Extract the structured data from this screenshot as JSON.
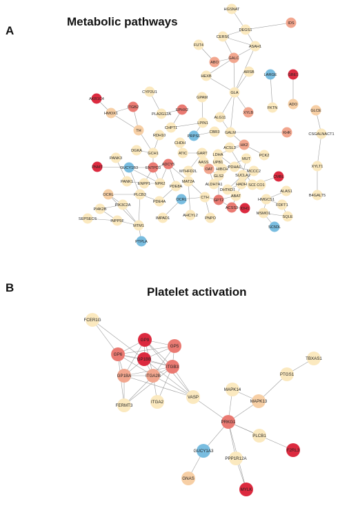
{
  "figure": {
    "panels": [
      {
        "label": "A",
        "title": "Metabolic pathways"
      },
      {
        "label": "B",
        "title": "Platelet activation"
      }
    ]
  },
  "colors": {
    "red": "#dc2a3f",
    "coral": "#ea7a72",
    "salmon": "#f2a68e",
    "peach": "#f7cfa5",
    "cream": "#fbe9bf",
    "blue": "#79bde0",
    "edge": "#9a9a9a",
    "text": "#222222"
  },
  "networks": {
    "metabolic": {
      "nodes": [
        {
          "id": "HGSNAT",
          "c": "cream"
        },
        {
          "id": "IDS",
          "c": "salmon"
        },
        {
          "id": "DEGS1",
          "c": "cream"
        },
        {
          "id": "CERS6",
          "c": "cream"
        },
        {
          "id": "ASAH1",
          "c": "cream"
        },
        {
          "id": "FUT4",
          "c": "cream"
        },
        {
          "id": "ABO",
          "c": "salmon"
        },
        {
          "id": "GALC",
          "c": "salmon"
        },
        {
          "id": "HEXB",
          "c": "cream"
        },
        {
          "id": "ARSB",
          "c": "cream"
        },
        {
          "id": "LARGE",
          "c": "blue"
        },
        {
          "id": "GBE1",
          "c": "red"
        },
        {
          "id": "ADO",
          "c": "peach"
        },
        {
          "id": "GLA",
          "c": "cream"
        },
        {
          "id": "FKTN",
          "c": "cream"
        },
        {
          "id": "AKR1C4",
          "c": "red"
        },
        {
          "id": "HMOX1",
          "c": "peach"
        },
        {
          "id": "ITGB2",
          "c": "coral"
        },
        {
          "id": "CYP2U1",
          "c": "cream"
        },
        {
          "id": "PLA2G12A",
          "c": "cream"
        },
        {
          "id": "EPHX2",
          "c": "coral"
        },
        {
          "id": "GPAM",
          "c": "cream"
        },
        {
          "id": "PRPS1",
          "c": "blue"
        },
        {
          "id": "LPIN1",
          "c": "cream"
        },
        {
          "id": "ALG11",
          "c": "cream"
        },
        {
          "id": "XYLB",
          "c": "salmon"
        },
        {
          "id": "GLCE",
          "c": "peach"
        },
        {
          "id": "CSGALNACT1",
          "c": "cream"
        },
        {
          "id": "XYLT1",
          "c": "cream"
        },
        {
          "id": "B4GALT5",
          "c": "cream"
        },
        {
          "id": "TH",
          "c": "peach"
        },
        {
          "id": "CHPT1",
          "c": "cream"
        },
        {
          "id": "RDH10",
          "c": "cream"
        },
        {
          "id": "CBR3",
          "c": "cream"
        },
        {
          "id": "GALM",
          "c": "cream"
        },
        {
          "id": "KHK",
          "c": "salmon"
        },
        {
          "id": "HK2",
          "c": "salmon"
        },
        {
          "id": "CHDH",
          "c": "cream"
        },
        {
          "id": "ATIC",
          "c": "cream"
        },
        {
          "id": "ACSL3",
          "c": "cream"
        },
        {
          "id": "DGKA",
          "c": "cream"
        },
        {
          "id": "GCH1",
          "c": "cream"
        },
        {
          "id": "GART",
          "c": "cream"
        },
        {
          "id": "LDHA",
          "c": "cream"
        },
        {
          "id": "PCK2",
          "c": "cream"
        },
        {
          "id": "PANK3",
          "c": "cream"
        },
        {
          "id": "AASS",
          "c": "cream"
        },
        {
          "id": "UPB1",
          "c": "cream"
        },
        {
          "id": "MUT",
          "c": "cream"
        },
        {
          "id": "PNMT",
          "c": "red"
        },
        {
          "id": "GUCY1B3",
          "c": "blue"
        },
        {
          "id": "ENTPD3",
          "c": "coral"
        },
        {
          "id": "ADCY5",
          "c": "coral"
        },
        {
          "id": "OAT",
          "c": "salmon"
        },
        {
          "id": "HIBCH",
          "c": "cream"
        },
        {
          "id": "PDHA1",
          "c": "cream"
        },
        {
          "id": "MCCC2",
          "c": "cream"
        },
        {
          "id": "PANK1",
          "c": "cream"
        },
        {
          "id": "ENPP1",
          "c": "cream"
        },
        {
          "id": "NPR2",
          "c": "cream"
        },
        {
          "id": "MTHFD2L",
          "c": "cream"
        },
        {
          "id": "GLS2",
          "c": "cream"
        },
        {
          "id": "SUCLA2",
          "c": "cream"
        },
        {
          "id": "CMBL",
          "c": "red"
        },
        {
          "id": "OCRL",
          "c": "peach"
        },
        {
          "id": "PLCB3",
          "c": "cream"
        },
        {
          "id": "PDE8A",
          "c": "cream"
        },
        {
          "id": "MAT2A",
          "c": "cream"
        },
        {
          "id": "ALDH7A1",
          "c": "cream"
        },
        {
          "id": "HADH",
          "c": "cream"
        },
        {
          "id": "SCD",
          "c": "cream"
        },
        {
          "id": "CO1",
          "c": "cream"
        },
        {
          "id": "ALAS1",
          "c": "cream"
        },
        {
          "id": "PDE4A",
          "c": "cream"
        },
        {
          "id": "PI4K2B",
          "c": "cream"
        },
        {
          "id": "PIK3C2A",
          "c": "cream"
        },
        {
          "id": "OCRL2",
          "c": "blue"
        },
        {
          "id": "CTH",
          "c": "cream"
        },
        {
          "id": "GPT2",
          "c": "coral"
        },
        {
          "id": "DHTKD1",
          "c": "cream"
        },
        {
          "id": "ABAT",
          "c": "cream"
        },
        {
          "id": "HMGCS1",
          "c": "cream"
        },
        {
          "id": "FDFT1",
          "c": "cream"
        },
        {
          "id": "SEPSECS",
          "c": "cream"
        },
        {
          "id": "INPP5F",
          "c": "cream"
        },
        {
          "id": "IMPAD1",
          "c": "cream"
        },
        {
          "id": "AHCYL2",
          "c": "cream"
        },
        {
          "id": "PNPO",
          "c": "cream"
        },
        {
          "id": "ACSS3",
          "c": "coral"
        },
        {
          "id": "IDH1",
          "c": "red"
        },
        {
          "id": "MSMO1",
          "c": "cream"
        },
        {
          "id": "SQLE",
          "c": "cream"
        },
        {
          "id": "MTM1",
          "c": "cream"
        },
        {
          "id": "SC5DL",
          "c": "blue"
        },
        {
          "id": "PTPLA",
          "c": "blue"
        }
      ],
      "edges": [
        [
          "HGSNAT",
          "DEGS1"
        ],
        [
          "DEGS1",
          "IDS"
        ],
        [
          "DEGS1",
          "CERS6"
        ],
        [
          "DEGS1",
          "ASAH1"
        ],
        [
          "CERS6",
          "ASAH1"
        ],
        [
          "CERS6",
          "GALC"
        ],
        [
          "ASAH1",
          "GALC"
        ],
        [
          "FUT4",
          "ABO"
        ],
        [
          "ABO",
          "GALC"
        ],
        [
          "GALC",
          "GLA"
        ],
        [
          "GALC",
          "HEXB"
        ],
        [
          "HEXB",
          "GLA"
        ],
        [
          "ARSB",
          "GLA"
        ],
        [
          "ASAH1",
          "GLA"
        ],
        [
          "LARGE",
          "FKTN"
        ],
        [
          "GBE1",
          "ADO"
        ],
        [
          "GLCE",
          "CSGALNACT1"
        ],
        [
          "CSGALNACT1",
          "XYLT1"
        ],
        [
          "XYLT1",
          "B4GALT5"
        ],
        [
          "GLA",
          "ALG11"
        ],
        [
          "GLA",
          "GALM"
        ],
        [
          "GLA",
          "XYLB"
        ],
        [
          "GPAM",
          "LPIN1"
        ],
        [
          "LPIN1",
          "CHPT1"
        ],
        [
          "LPIN1",
          "PRPS1"
        ],
        [
          "PRPS1",
          "CBR3"
        ],
        [
          "ALG11",
          "GALM"
        ],
        [
          "GALM",
          "HK2"
        ],
        [
          "GALM",
          "KHK"
        ],
        [
          "HK2",
          "LDHA"
        ],
        [
          "HK2",
          "PCK2"
        ],
        [
          "LDHA",
          "PDHA1"
        ],
        [
          "PDHA1",
          "MCCC2"
        ],
        [
          "ACSL3",
          "SCD"
        ],
        [
          "ACSL3",
          "HK2"
        ],
        [
          "ITGB2",
          "HMOX1"
        ],
        [
          "ITGB2",
          "TH"
        ],
        [
          "AKR1C4",
          "HMOX1"
        ],
        [
          "HMOX1",
          "TH"
        ],
        [
          "CYP2U1",
          "PLA2G12A"
        ],
        [
          "PLA2G12A",
          "EPHX2"
        ],
        [
          "EPHX2",
          "CHPT1"
        ],
        [
          "TH",
          "GCH1"
        ],
        [
          "RDH10",
          "GCH1"
        ],
        [
          "CHDH",
          "ATIC"
        ],
        [
          "ATIC",
          "GART"
        ],
        [
          "GART",
          "MTHFD2L"
        ],
        [
          "GART",
          "AASS"
        ],
        [
          "AASS",
          "OAT"
        ],
        [
          "OAT",
          "GLS2"
        ],
        [
          "OAT",
          "ALDH7A1"
        ],
        [
          "UPB1",
          "HIBCH"
        ],
        [
          "HIBCH",
          "MUT"
        ],
        [
          "MUT",
          "SUCLA2"
        ],
        [
          "SUCLA2",
          "DHTKD1"
        ],
        [
          "DGKA",
          "GCH1"
        ],
        [
          "GCH1",
          "ENTPD3"
        ],
        [
          "ENTPD3",
          "ADCY5"
        ],
        [
          "ENTPD3",
          "ENPP1"
        ],
        [
          "ENTPD3",
          "NPR2"
        ],
        [
          "ADCY5",
          "NPR2"
        ],
        [
          "ADCY5",
          "PDE8A"
        ],
        [
          "ADCY5",
          "MAT2A"
        ],
        [
          "PNMT",
          "GUCY1B3"
        ],
        [
          "GUCY1B3",
          "ENTPD3"
        ],
        [
          "GUCY1B3",
          "NPR2"
        ],
        [
          "PANK3",
          "PANK1"
        ],
        [
          "PANK1",
          "ENPP1"
        ],
        [
          "ENPP1",
          "NPR2"
        ],
        [
          "MAT2A",
          "CTH"
        ],
        [
          "MAT2A",
          "AHCYL2"
        ],
        [
          "CTH",
          "GPT2"
        ],
        [
          "GPT2",
          "ACSS3"
        ],
        [
          "ACSS3",
          "IDH1"
        ],
        [
          "GLS2",
          "GPT2"
        ],
        [
          "ABAT",
          "GPT2"
        ],
        [
          "HADH",
          "ACSS3"
        ],
        [
          "SCD",
          "CO1"
        ],
        [
          "CMBL",
          "SCD"
        ],
        [
          "ALAS1",
          "HMGCS1"
        ],
        [
          "HMGCS1",
          "FDFT1"
        ],
        [
          "FDFT1",
          "SQLE"
        ],
        [
          "HMGCS1",
          "MSMO1"
        ],
        [
          "MSMO1",
          "SC5DL"
        ],
        [
          "SQLE",
          "MSMO1"
        ],
        [
          "OCRL",
          "PLCB3"
        ],
        [
          "PLCB3",
          "PDE4A"
        ],
        [
          "OCRL",
          "PIK3C2A"
        ],
        [
          "PIK3C2A",
          "PI4K2B"
        ],
        [
          "PI4K2B",
          "INPP5F"
        ],
        [
          "INPP5F",
          "MTM1"
        ],
        [
          "PIK3C2A",
          "MTM1"
        ],
        [
          "PLCB3",
          "MTM1"
        ],
        [
          "MTM1",
          "PTPLA"
        ],
        [
          "OCRL",
          "MTM1"
        ],
        [
          "OCRL2",
          "IMPAD1"
        ],
        [
          "OCRL2",
          "CTH"
        ],
        [
          "PNPO",
          "CTH"
        ],
        [
          "PDE4A",
          "PDE8A"
        ],
        [
          "MCCC2",
          "HADH"
        ],
        [
          "HADH",
          "DHTKD1"
        ],
        [
          "SEPSECS",
          "INPP5F"
        ],
        [
          "GUCY1B3",
          "PLCB3"
        ]
      ]
    },
    "platelet": {
      "nodes": [
        {
          "id": "FCER1G",
          "c": "cream"
        },
        {
          "id": "GP9",
          "c": "red"
        },
        {
          "id": "GP5",
          "c": "coral"
        },
        {
          "id": "GP6",
          "c": "coral"
        },
        {
          "id": "GP1BB",
          "c": "red"
        },
        {
          "id": "ITGB3",
          "c": "coral"
        },
        {
          "id": "GP1BA",
          "c": "salmon"
        },
        {
          "id": "ITGA2B",
          "c": "salmon"
        },
        {
          "id": "TBXAS1",
          "c": "cream"
        },
        {
          "id": "PTGS1",
          "c": "cream"
        },
        {
          "id": "MAPK14",
          "c": "cream"
        },
        {
          "id": "VASP",
          "c": "cream"
        },
        {
          "id": "FERMT3",
          "c": "cream"
        },
        {
          "id": "ITGA2",
          "c": "cream"
        },
        {
          "id": "MAPK13",
          "c": "peach"
        },
        {
          "id": "PRKG1",
          "c": "coral"
        },
        {
          "id": "PLCB1",
          "c": "cream"
        },
        {
          "id": "GUCY1A3",
          "c": "blue"
        },
        {
          "id": "F2RL3",
          "c": "red"
        },
        {
          "id": "PPP1R12A",
          "c": "cream"
        },
        {
          "id": "GNAS",
          "c": "peach"
        },
        {
          "id": "MYLK",
          "c": "red"
        }
      ],
      "edges": [
        [
          "FCER1G",
          "GP6"
        ],
        [
          "FCER1G",
          "GP1BB"
        ],
        [
          "GP9",
          "GP5"
        ],
        [
          "GP9",
          "GP6"
        ],
        [
          "GP9",
          "GP1BB"
        ],
        [
          "GP9",
          "ITGB3"
        ],
        [
          "GP9",
          "GP1BA"
        ],
        [
          "GP9",
          "ITGA2B"
        ],
        [
          "GP5",
          "GP1BB"
        ],
        [
          "GP5",
          "ITGB3"
        ],
        [
          "GP5",
          "GP6"
        ],
        [
          "GP5",
          "ITGA2B"
        ],
        [
          "GP6",
          "GP1BB"
        ],
        [
          "GP6",
          "GP1BA"
        ],
        [
          "GP6",
          "ITGA2B"
        ],
        [
          "GP6",
          "ITGB3"
        ],
        [
          "GP1BB",
          "ITGB3"
        ],
        [
          "GP1BB",
          "GP1BA"
        ],
        [
          "GP1BB",
          "ITGA2B"
        ],
        [
          "ITGB3",
          "ITGA2B"
        ],
        [
          "ITGB3",
          "GP1BA"
        ],
        [
          "ITGB3",
          "VASP"
        ],
        [
          "ITGB3",
          "ITGA2"
        ],
        [
          "GP1BA",
          "ITGA2B"
        ],
        [
          "GP1BA",
          "FERMT3"
        ],
        [
          "GP1BA",
          "VASP"
        ],
        [
          "ITGA2B",
          "FERMT3"
        ],
        [
          "ITGA2B",
          "ITGA2"
        ],
        [
          "ITGA2B",
          "VASP"
        ],
        [
          "GP1BB",
          "VASP"
        ],
        [
          "GP9",
          "VASP"
        ],
        [
          "GP6",
          "FERMT3"
        ],
        [
          "FERMT3",
          "ITGB3"
        ],
        [
          "VASP",
          "PRKG1"
        ],
        [
          "TBXAS1",
          "PTGS1"
        ],
        [
          "PTGS1",
          "MAPK13"
        ],
        [
          "MAPK14",
          "MAPK13"
        ],
        [
          "MAPK13",
          "PRKG1"
        ],
        [
          "MAPK14",
          "PRKG1"
        ],
        [
          "PRKG1",
          "PLCB1"
        ],
        [
          "PRKG1",
          "F2RL3"
        ],
        [
          "PRKG1",
          "GUCY1A3"
        ],
        [
          "PRKG1",
          "PPP1R12A"
        ],
        [
          "GUCY1A3",
          "GNAS"
        ],
        [
          "PPP1R12A",
          "MYLK"
        ],
        [
          "PRKG1",
          "MYLK"
        ]
      ]
    }
  }
}
